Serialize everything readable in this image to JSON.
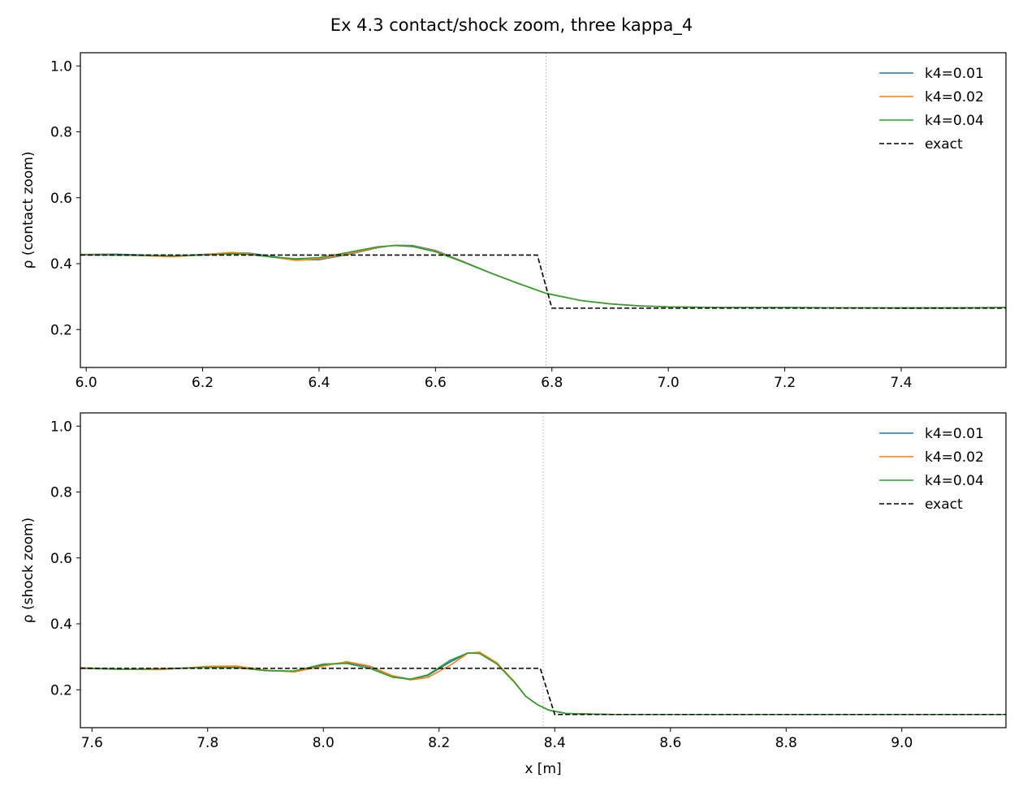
{
  "figure": {
    "title": "Ex 4.3 contact/shock zoom, three kappa_4"
  },
  "chart_data": [
    {
      "type": "line",
      "ylabel": "ρ  (contact zoom)",
      "xlabel": "",
      "xlim": [
        5.99,
        7.58
      ],
      "ylim": [
        0.085,
        1.04
      ],
      "xticks": [
        "6.0",
        "6.2",
        "6.4",
        "6.6",
        "6.8",
        "7.0",
        "7.2",
        "7.4"
      ],
      "yticks": [
        "0.2",
        "0.4",
        "0.6",
        "0.8",
        "1.0"
      ],
      "grid": false,
      "legend_position": "top-right",
      "vline": {
        "x": 6.79,
        "color": "#aaaaaa",
        "style": "dotted"
      },
      "series": [
        {
          "name": "k4=0.01",
          "color": "#1f77b4",
          "style": "solid",
          "points": [
            [
              5.99,
              0.428
            ],
            [
              6.05,
              0.429
            ],
            [
              6.1,
              0.426
            ],
            [
              6.15,
              0.423
            ],
            [
              6.2,
              0.428
            ],
            [
              6.25,
              0.433
            ],
            [
              6.28,
              0.432
            ],
            [
              6.32,
              0.422
            ],
            [
              6.36,
              0.412
            ],
            [
              6.4,
              0.412
            ],
            [
              6.45,
              0.428
            ],
            [
              6.5,
              0.448
            ],
            [
              6.53,
              0.456
            ],
            [
              6.56,
              0.455
            ],
            [
              6.6,
              0.44
            ],
            [
              6.64,
              0.412
            ],
            [
              6.7,
              0.368
            ],
            [
              6.75,
              0.335
            ],
            [
              6.79,
              0.31
            ],
            [
              6.85,
              0.288
            ],
            [
              6.9,
              0.278
            ],
            [
              6.95,
              0.272
            ],
            [
              7.0,
              0.269
            ],
            [
              7.1,
              0.267
            ],
            [
              7.2,
              0.267
            ],
            [
              7.3,
              0.266
            ],
            [
              7.4,
              0.265
            ],
            [
              7.5,
              0.265
            ],
            [
              7.58,
              0.267
            ]
          ]
        },
        {
          "name": "k4=0.02",
          "color": "#ff7f0e",
          "style": "solid",
          "points": [
            [
              5.99,
              0.428
            ],
            [
              6.05,
              0.427
            ],
            [
              6.1,
              0.424
            ],
            [
              6.15,
              0.421
            ],
            [
              6.2,
              0.427
            ],
            [
              6.25,
              0.434
            ],
            [
              6.28,
              0.43
            ],
            [
              6.32,
              0.42
            ],
            [
              6.36,
              0.41
            ],
            [
              6.4,
              0.414
            ],
            [
              6.45,
              0.43
            ],
            [
              6.5,
              0.449
            ],
            [
              6.53,
              0.456
            ],
            [
              6.56,
              0.453
            ],
            [
              6.6,
              0.438
            ],
            [
              6.64,
              0.411
            ],
            [
              6.7,
              0.368
            ],
            [
              6.75,
              0.335
            ],
            [
              6.79,
              0.31
            ],
            [
              6.85,
              0.288
            ],
            [
              6.9,
              0.278
            ],
            [
              6.95,
              0.272
            ],
            [
              7.0,
              0.269
            ],
            [
              7.1,
              0.267
            ],
            [
              7.2,
              0.266
            ],
            [
              7.3,
              0.266
            ],
            [
              7.4,
              0.265
            ],
            [
              7.5,
              0.266
            ],
            [
              7.58,
              0.267
            ]
          ]
        },
        {
          "name": "k4=0.04",
          "color": "#2ca02c",
          "style": "solid",
          "points": [
            [
              5.99,
              0.427
            ],
            [
              6.05,
              0.426
            ],
            [
              6.1,
              0.425
            ],
            [
              6.15,
              0.424
            ],
            [
              6.2,
              0.426
            ],
            [
              6.25,
              0.43
            ],
            [
              6.28,
              0.428
            ],
            [
              6.32,
              0.42
            ],
            [
              6.36,
              0.415
            ],
            [
              6.4,
              0.418
            ],
            [
              6.45,
              0.434
            ],
            [
              6.5,
              0.451
            ],
            [
              6.53,
              0.455
            ],
            [
              6.56,
              0.452
            ],
            [
              6.6,
              0.436
            ],
            [
              6.64,
              0.41
            ],
            [
              6.7,
              0.368
            ],
            [
              6.75,
              0.335
            ],
            [
              6.79,
              0.31
            ],
            [
              6.85,
              0.288
            ],
            [
              6.9,
              0.278
            ],
            [
              6.95,
              0.272
            ],
            [
              7.0,
              0.269
            ],
            [
              7.1,
              0.267
            ],
            [
              7.2,
              0.267
            ],
            [
              7.3,
              0.266
            ],
            [
              7.4,
              0.266
            ],
            [
              7.5,
              0.266
            ],
            [
              7.58,
              0.267
            ]
          ]
        },
        {
          "name": "exact",
          "color": "#000000",
          "style": "dashed",
          "points": [
            [
              5.99,
              0.426
            ],
            [
              6.775,
              0.426
            ],
            [
              6.8,
              0.265
            ],
            [
              7.58,
              0.265
            ]
          ]
        }
      ]
    },
    {
      "type": "line",
      "ylabel": "ρ  (shock zoom)",
      "xlabel": "x [m]",
      "xlim": [
        7.58,
        9.18
      ],
      "ylim": [
        0.085,
        1.04
      ],
      "xticks": [
        "7.6",
        "7.8",
        "8.0",
        "8.2",
        "8.4",
        "8.6",
        "8.8",
        "9.0"
      ],
      "yticks": [
        "0.2",
        "0.4",
        "0.6",
        "0.8",
        "1.0"
      ],
      "grid": false,
      "legend_position": "top-right",
      "vline": {
        "x": 8.38,
        "color": "#aaaaaa",
        "style": "dotted"
      },
      "series": [
        {
          "name": "k4=0.01",
          "color": "#1f77b4",
          "style": "solid",
          "points": [
            [
              7.58,
              0.267
            ],
            [
              7.65,
              0.263
            ],
            [
              7.72,
              0.262
            ],
            [
              7.8,
              0.269
            ],
            [
              7.85,
              0.27
            ],
            [
              7.9,
              0.258
            ],
            [
              7.95,
              0.256
            ],
            [
              8.0,
              0.275
            ],
            [
              8.04,
              0.283
            ],
            [
              8.08,
              0.27
            ],
            [
              8.12,
              0.242
            ],
            [
              8.15,
              0.232
            ],
            [
              8.18,
              0.243
            ],
            [
              8.22,
              0.285
            ],
            [
              8.25,
              0.312
            ],
            [
              8.27,
              0.312
            ],
            [
              8.3,
              0.28
            ],
            [
              8.33,
              0.225
            ],
            [
              8.35,
              0.18
            ],
            [
              8.37,
              0.155
            ],
            [
              8.39,
              0.138
            ],
            [
              8.42,
              0.128
            ],
            [
              8.5,
              0.125
            ],
            [
              8.7,
              0.125
            ],
            [
              8.9,
              0.125
            ],
            [
              9.18,
              0.125
            ]
          ]
        },
        {
          "name": "k4=0.02",
          "color": "#ff7f0e",
          "style": "solid",
          "points": [
            [
              7.58,
              0.267
            ],
            [
              7.65,
              0.262
            ],
            [
              7.72,
              0.261
            ],
            [
              7.8,
              0.271
            ],
            [
              7.85,
              0.272
            ],
            [
              7.9,
              0.26
            ],
            [
              7.95,
              0.254
            ],
            [
              8.0,
              0.272
            ],
            [
              8.04,
              0.285
            ],
            [
              8.08,
              0.272
            ],
            [
              8.12,
              0.242
            ],
            [
              8.15,
              0.23
            ],
            [
              8.18,
              0.237
            ],
            [
              8.22,
              0.275
            ],
            [
              8.25,
              0.311
            ],
            [
              8.27,
              0.314
            ],
            [
              8.3,
              0.282
            ],
            [
              8.33,
              0.225
            ],
            [
              8.35,
              0.18
            ],
            [
              8.37,
              0.155
            ],
            [
              8.39,
              0.138
            ],
            [
              8.42,
              0.128
            ],
            [
              8.5,
              0.125
            ],
            [
              8.7,
              0.125
            ],
            [
              8.9,
              0.125
            ],
            [
              9.18,
              0.125
            ]
          ]
        },
        {
          "name": "k4=0.04",
          "color": "#2ca02c",
          "style": "solid",
          "points": [
            [
              7.58,
              0.265
            ],
            [
              7.65,
              0.262
            ],
            [
              7.72,
              0.264
            ],
            [
              7.8,
              0.268
            ],
            [
              7.85,
              0.267
            ],
            [
              7.9,
              0.258
            ],
            [
              7.95,
              0.257
            ],
            [
              8.0,
              0.278
            ],
            [
              8.04,
              0.28
            ],
            [
              8.08,
              0.265
            ],
            [
              8.12,
              0.238
            ],
            [
              8.15,
              0.232
            ],
            [
              8.18,
              0.245
            ],
            [
              8.22,
              0.29
            ],
            [
              8.25,
              0.312
            ],
            [
              8.27,
              0.31
            ],
            [
              8.3,
              0.278
            ],
            [
              8.33,
              0.223
            ],
            [
              8.35,
              0.18
            ],
            [
              8.37,
              0.155
            ],
            [
              8.39,
              0.138
            ],
            [
              8.42,
              0.128
            ],
            [
              8.5,
              0.125
            ],
            [
              8.7,
              0.125
            ],
            [
              8.9,
              0.125
            ],
            [
              9.18,
              0.125
            ]
          ]
        },
        {
          "name": "exact",
          "color": "#000000",
          "style": "dashed",
          "points": [
            [
              7.58,
              0.265
            ],
            [
              8.375,
              0.265
            ],
            [
              8.4,
              0.125
            ],
            [
              9.18,
              0.125
            ]
          ]
        }
      ]
    }
  ]
}
